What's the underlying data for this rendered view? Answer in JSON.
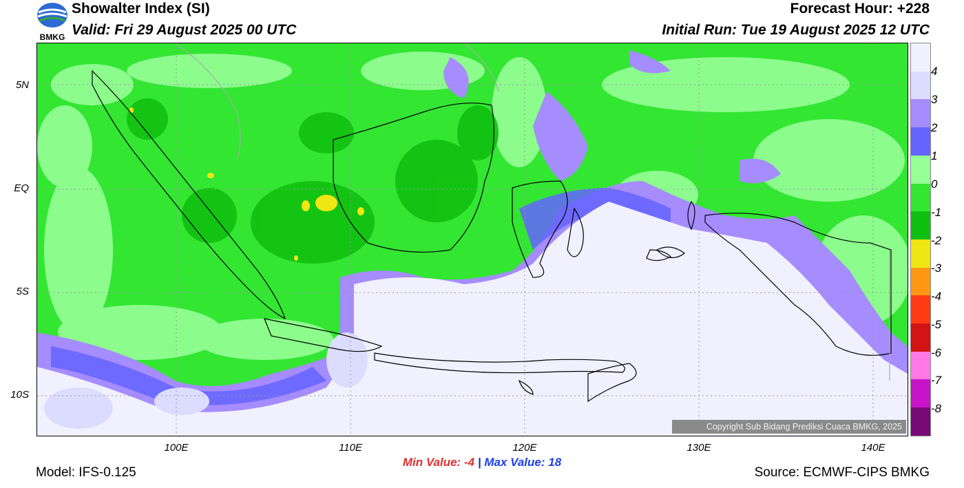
{
  "header": {
    "title": "Showalter Index (SI)",
    "valid": "Valid: Fri 29 August 2025 00 UTC",
    "forecast_hour": "Forecast Hour: +228",
    "initial_run": "Initial Run: Tue 19 August 2025 12 UTC"
  },
  "logo": {
    "text": "BMKG"
  },
  "map": {
    "lat_labels": [
      "5N",
      "EQ",
      "5S",
      "10S"
    ],
    "lon_labels": [
      "100E",
      "110E",
      "120E",
      "130E",
      "140E"
    ],
    "copyright": "Copyright Sub Bidang Prediksi Cuaca BMKG, 2025"
  },
  "colorbar": {
    "labels": [
      "4",
      "3",
      "2",
      "1",
      "0",
      "-1",
      "-2",
      "-3",
      "-4",
      "-5",
      "-6",
      "-7",
      "-8"
    ],
    "colors": [
      "#f0f0ff",
      "#dcdcff",
      "#a58cff",
      "#6464ff",
      "#96ff96",
      "#32e632",
      "#10c010",
      "#f0e614",
      "#ff9614",
      "#ff3c14",
      "#d21414",
      "#ff78e6",
      "#c814c8",
      "#780a78"
    ]
  },
  "stats": {
    "min_label": "Min Value:",
    "min_value": "-4",
    "separator": "|",
    "max_label": "Max Value:",
    "max_value": "18"
  },
  "footer": {
    "model": "Model: IFS-0.125",
    "source": "Source: ECMWF-CIPS BMKG"
  }
}
